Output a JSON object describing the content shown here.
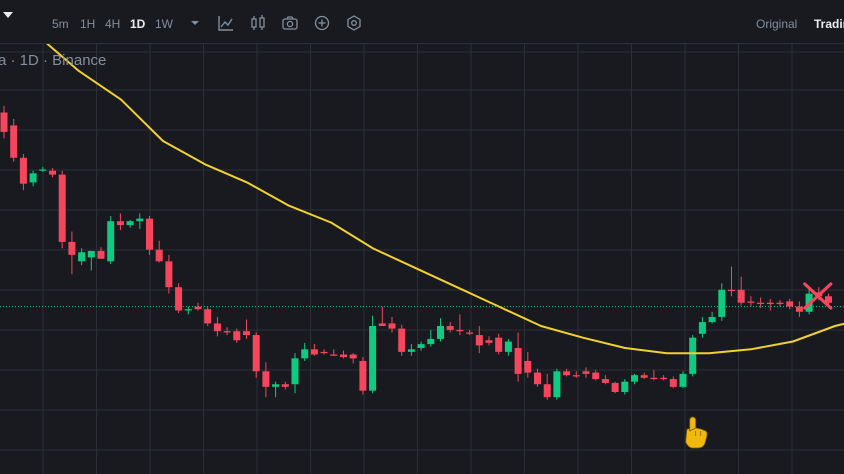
{
  "toolbar": {
    "intervals": [
      {
        "label": "5m",
        "active": false
      },
      {
        "label": "1H",
        "active": false
      },
      {
        "label": "4H",
        "active": false
      },
      {
        "label": "1D",
        "active": true
      },
      {
        "label": "1W",
        "active": false
      }
    ],
    "icons": [
      "more-intervals-caret-icon",
      "indicators-icon",
      "candle-type-icon",
      "screenshot-icon",
      "add-icon",
      "settings-icon"
    ],
    "views": [
      {
        "label": "Original",
        "active": false
      },
      {
        "label": "Tradin",
        "active": true
      }
    ]
  },
  "legend": {
    "text": "a · 1D · Binance"
  },
  "colors": {
    "up": "#0ecb81",
    "down": "#f6465d",
    "ma": "#f0d130",
    "grid": "#2b2f36",
    "price_line": "#0ecb81",
    "marker_x": "#f6465d",
    "hand": "#f0b90b"
  },
  "chart_data": {
    "type": "candlestick",
    "interval": "1D",
    "candles": [
      {
        "o": 250,
        "h": 255,
        "l": 230,
        "c": 235,
        "dir": "down"
      },
      {
        "o": 240,
        "h": 245,
        "l": 212,
        "c": 215,
        "dir": "down"
      },
      {
        "o": 215,
        "h": 218,
        "l": 190,
        "c": 195,
        "dir": "down"
      },
      {
        "o": 196,
        "h": 205,
        "l": 193,
        "c": 203,
        "dir": "up"
      },
      {
        "o": 205,
        "h": 208,
        "l": 204,
        "c": 206,
        "dir": "up"
      },
      {
        "o": 205,
        "h": 207,
        "l": 200,
        "c": 202,
        "dir": "down"
      },
      {
        "o": 202,
        "h": 205,
        "l": 145,
        "c": 150,
        "dir": "down"
      },
      {
        "o": 150,
        "h": 158,
        "l": 125,
        "c": 140,
        "dir": "down"
      },
      {
        "o": 135,
        "h": 145,
        "l": 132,
        "c": 142,
        "dir": "up"
      },
      {
        "o": 138,
        "h": 143,
        "l": 128,
        "c": 143,
        "dir": "up"
      },
      {
        "o": 143,
        "h": 146,
        "l": 137,
        "c": 137,
        "dir": "down"
      },
      {
        "o": 135,
        "h": 170,
        "l": 133,
        "c": 166,
        "dir": "up"
      },
      {
        "o": 166,
        "h": 172,
        "l": 159,
        "c": 163,
        "dir": "down"
      },
      {
        "o": 163,
        "h": 167,
        "l": 161,
        "c": 166,
        "dir": "up"
      },
      {
        "o": 166,
        "h": 172,
        "l": 160,
        "c": 168,
        "dir": "up"
      },
      {
        "o": 168,
        "h": 170,
        "l": 140,
        "c": 144,
        "dir": "down"
      },
      {
        "o": 144,
        "h": 151,
        "l": 134,
        "c": 135,
        "dir": "down"
      },
      {
        "o": 135,
        "h": 140,
        "l": 110,
        "c": 115,
        "dir": "down"
      },
      {
        "o": 115,
        "h": 118,
        "l": 95,
        "c": 97,
        "dir": "down"
      },
      {
        "o": 97,
        "h": 100,
        "l": 94,
        "c": 98,
        "dir": "up"
      },
      {
        "o": 100,
        "h": 103,
        "l": 97,
        "c": 98,
        "dir": "down"
      },
      {
        "o": 98,
        "h": 100,
        "l": 85,
        "c": 87,
        "dir": "down"
      },
      {
        "o": 87,
        "h": 92,
        "l": 77,
        "c": 81,
        "dir": "down"
      },
      {
        "o": 81,
        "h": 84,
        "l": 78,
        "c": 81,
        "dir": "down"
      },
      {
        "o": 81,
        "h": 83,
        "l": 72,
        "c": 74,
        "dir": "down"
      },
      {
        "o": 81,
        "h": 90,
        "l": 75,
        "c": 78,
        "dir": "down"
      },
      {
        "o": 78,
        "h": 80,
        "l": 45,
        "c": 50,
        "dir": "down"
      },
      {
        "o": 50,
        "h": 57,
        "l": 30,
        "c": 38,
        "dir": "down"
      },
      {
        "o": 38,
        "h": 42,
        "l": 30,
        "c": 40,
        "dir": "up"
      },
      {
        "o": 38,
        "h": 42,
        "l": 36,
        "c": 40,
        "dir": "down"
      },
      {
        "o": 40,
        "h": 64,
        "l": 33,
        "c": 60,
        "dir": "up"
      },
      {
        "o": 60,
        "h": 72,
        "l": 58,
        "c": 67,
        "dir": "up"
      },
      {
        "o": 67,
        "h": 71,
        "l": 62,
        "c": 63,
        "dir": "down"
      },
      {
        "o": 65,
        "h": 67,
        "l": 63,
        "c": 64,
        "dir": "down"
      },
      {
        "o": 63,
        "h": 67,
        "l": 62,
        "c": 63,
        "dir": "down"
      },
      {
        "o": 63,
        "h": 66,
        "l": 60,
        "c": 61,
        "dir": "down"
      },
      {
        "o": 63,
        "h": 64,
        "l": 56,
        "c": 60,
        "dir": "down"
      },
      {
        "o": 58,
        "h": 61,
        "l": 32,
        "c": 35,
        "dir": "down"
      },
      {
        "o": 35,
        "h": 93,
        "l": 33,
        "c": 85,
        "dir": "up"
      },
      {
        "o": 87,
        "h": 100,
        "l": 85,
        "c": 85,
        "dir": "down"
      },
      {
        "o": 87,
        "h": 92,
        "l": 80,
        "c": 83,
        "dir": "down"
      },
      {
        "o": 83,
        "h": 86,
        "l": 62,
        "c": 65,
        "dir": "down"
      },
      {
        "o": 65,
        "h": 71,
        "l": 62,
        "c": 67,
        "dir": "up"
      },
      {
        "o": 68,
        "h": 73,
        "l": 66,
        "c": 71,
        "dir": "up"
      },
      {
        "o": 71,
        "h": 82,
        "l": 69,
        "c": 75,
        "dir": "up"
      },
      {
        "o": 75,
        "h": 91,
        "l": 73,
        "c": 85,
        "dir": "up"
      },
      {
        "o": 85,
        "h": 88,
        "l": 80,
        "c": 82,
        "dir": "down"
      },
      {
        "o": 82,
        "h": 94,
        "l": 78,
        "c": 82,
        "dir": "down"
      },
      {
        "o": 80,
        "h": 82,
        "l": 78,
        "c": 80,
        "dir": "down"
      },
      {
        "o": 78,
        "h": 85,
        "l": 64,
        "c": 70,
        "dir": "down"
      },
      {
        "o": 74,
        "h": 77,
        "l": 70,
        "c": 72,
        "dir": "down"
      },
      {
        "o": 76,
        "h": 79,
        "l": 63,
        "c": 65,
        "dir": "down"
      },
      {
        "o": 65,
        "h": 75,
        "l": 62,
        "c": 73,
        "dir": "up"
      },
      {
        "o": 68,
        "h": 80,
        "l": 42,
        "c": 48,
        "dir": "down"
      },
      {
        "o": 58,
        "h": 65,
        "l": 45,
        "c": 49,
        "dir": "down"
      },
      {
        "o": 49,
        "h": 52,
        "l": 38,
        "c": 40,
        "dir": "down"
      },
      {
        "o": 40,
        "h": 48,
        "l": 28,
        "c": 30,
        "dir": "down"
      },
      {
        "o": 30,
        "h": 52,
        "l": 28,
        "c": 50,
        "dir": "up"
      },
      {
        "o": 50,
        "h": 52,
        "l": 46,
        "c": 47,
        "dir": "down"
      },
      {
        "o": 47,
        "h": 50,
        "l": 45,
        "c": 47,
        "dir": "down"
      },
      {
        "o": 48,
        "h": 53,
        "l": 45,
        "c": 50,
        "dir": "down"
      },
      {
        "o": 49,
        "h": 51,
        "l": 43,
        "c": 44,
        "dir": "down"
      },
      {
        "o": 44,
        "h": 47,
        "l": 40,
        "c": 41,
        "dir": "down"
      },
      {
        "o": 41,
        "h": 42,
        "l": 33,
        "c": 34,
        "dir": "down"
      },
      {
        "o": 34,
        "h": 44,
        "l": 32,
        "c": 42,
        "dir": "up"
      },
      {
        "o": 42,
        "h": 48,
        "l": 40,
        "c": 47,
        "dir": "up"
      },
      {
        "o": 47,
        "h": 49,
        "l": 44,
        "c": 45,
        "dir": "down"
      },
      {
        "o": 45,
        "h": 51,
        "l": 43,
        "c": 45,
        "dir": "down"
      },
      {
        "o": 45,
        "h": 47,
        "l": 43,
        "c": 44,
        "dir": "down"
      },
      {
        "o": 44,
        "h": 46,
        "l": 37,
        "c": 38,
        "dir": "down"
      },
      {
        "o": 38,
        "h": 50,
        "l": 37,
        "c": 48,
        "dir": "up"
      },
      {
        "o": 48,
        "h": 78,
        "l": 46,
        "c": 76,
        "dir": "up"
      },
      {
        "o": 79,
        "h": 92,
        "l": 76,
        "c": 88,
        "dir": "up"
      },
      {
        "o": 88,
        "h": 96,
        "l": 87,
        "c": 92,
        "dir": "up"
      },
      {
        "o": 92,
        "h": 118,
        "l": 89,
        "c": 113,
        "dir": "up"
      },
      {
        "o": 113,
        "h": 131,
        "l": 108,
        "c": 113,
        "dir": "down"
      },
      {
        "o": 113,
        "h": 123,
        "l": 101,
        "c": 103,
        "dir": "down"
      },
      {
        "o": 104,
        "h": 108,
        "l": 100,
        "c": 104,
        "dir": "down"
      },
      {
        "o": 103,
        "h": 107,
        "l": 99,
        "c": 103,
        "dir": "down"
      },
      {
        "o": 103,
        "h": 106,
        "l": 97,
        "c": 103,
        "dir": "down"
      },
      {
        "o": 103,
        "h": 105,
        "l": 100,
        "c": 103,
        "dir": "down"
      },
      {
        "o": 104,
        "h": 106,
        "l": 98,
        "c": 100,
        "dir": "down"
      },
      {
        "o": 100,
        "h": 104,
        "l": 92,
        "c": 96,
        "dir": "down"
      },
      {
        "o": 96,
        "h": 114,
        "l": 94,
        "c": 110,
        "dir": "up"
      },
      {
        "o": 111,
        "h": 115,
        "l": 105,
        "c": 108,
        "dir": "down"
      },
      {
        "o": 108,
        "h": 110,
        "l": 100,
        "c": 103,
        "dir": "down"
      }
    ],
    "moving_average": [
      345,
      310,
      282,
      260,
      228,
      210,
      196,
      178,
      165,
      145,
      130,
      115,
      100,
      85,
      76,
      68,
      64,
      64,
      67,
      73,
      85,
      93
    ],
    "last_price_level": 100,
    "annotations": [
      {
        "type": "x-marker",
        "candle": 84
      },
      {
        "type": "hand-pointer",
        "candle": 71
      }
    ]
  }
}
